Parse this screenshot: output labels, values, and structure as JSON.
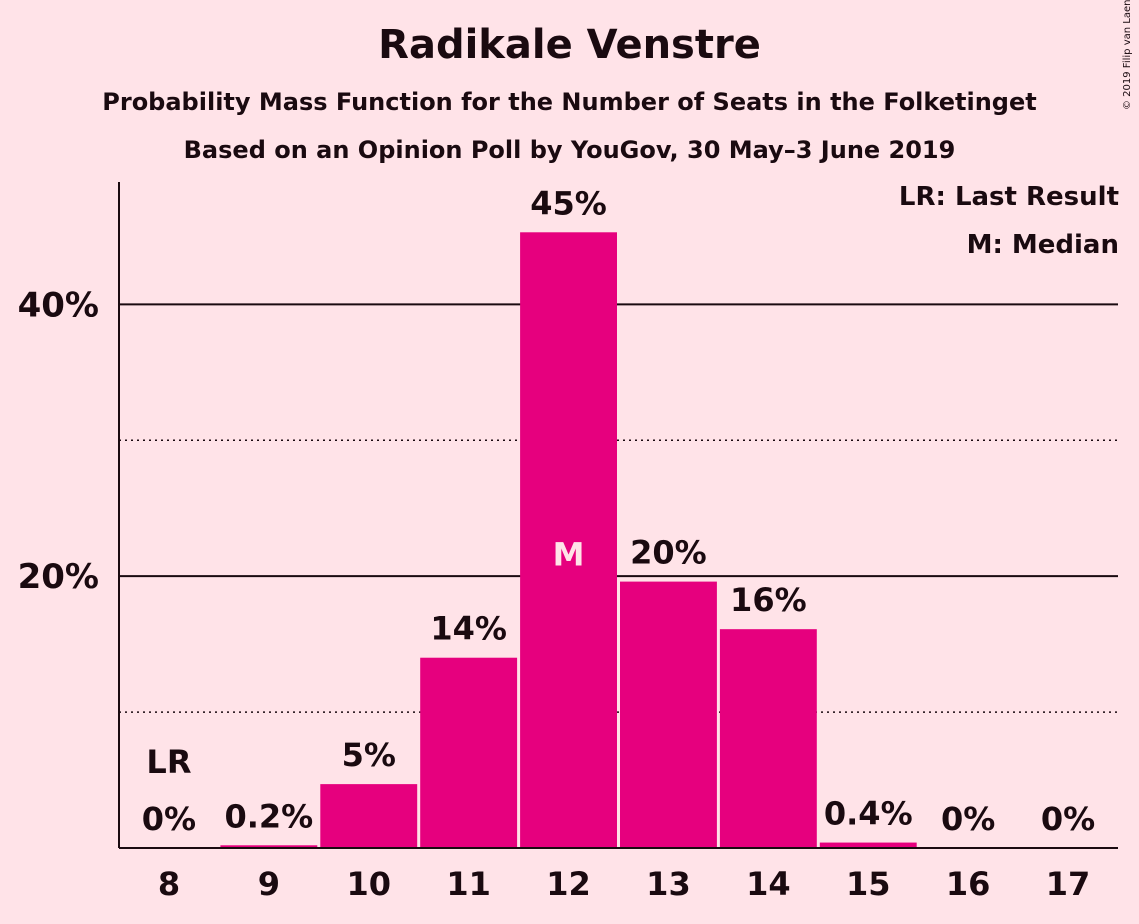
{
  "header": {
    "title": "Radikale Venstre",
    "subtitle1": "Probability Mass Function for the Number of Seats in the Folketinget",
    "subtitle2": "Based on an Opinion Poll by YouGov, 30 May–3 June 2019",
    "copyright": "© 2019 Filip van Laenen"
  },
  "legend": {
    "last_result": "LR: Last Result",
    "median": "M: Median"
  },
  "colors": {
    "bar": "#E6007E",
    "background": "#FFE3E8"
  },
  "chart_data": {
    "type": "bar",
    "categories": [
      "8",
      "9",
      "10",
      "11",
      "12",
      "13",
      "14",
      "15",
      "16",
      "17"
    ],
    "values": [
      0,
      0.2,
      4.7,
      14,
      45.3,
      19.6,
      16.1,
      0.4,
      0,
      0
    ],
    "labels": [
      "0%",
      "0.2%",
      "5%",
      "14%",
      "45%",
      "20%",
      "16%",
      "0.4%",
      "0%",
      "0%"
    ],
    "last_result_category": "8",
    "last_result_marker": "LR",
    "median_category": "12",
    "median_marker": "M",
    "ylim": [
      0,
      49
    ],
    "y_ticks": [
      {
        "value": 20,
        "label": "20%"
      },
      {
        "value": 40,
        "label": "40%"
      }
    ],
    "minor_gridlines": [
      10,
      30
    ],
    "ylabel": "",
    "xlabel": ""
  }
}
